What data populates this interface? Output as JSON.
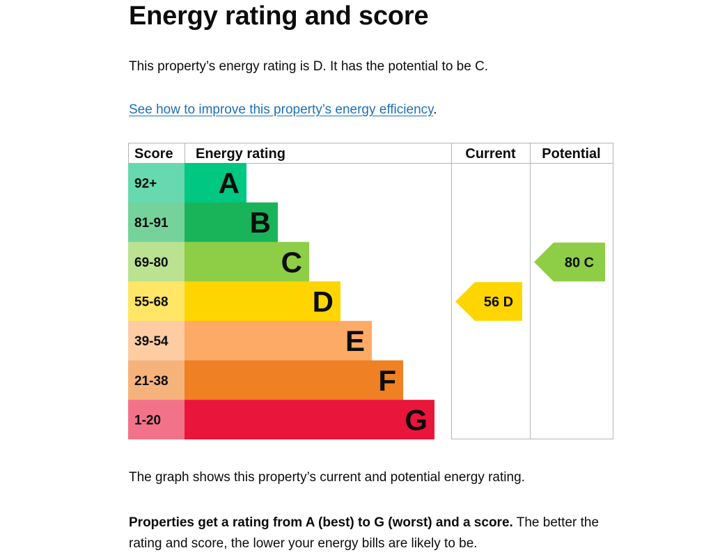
{
  "heading": "Energy rating and score",
  "intro": "This property’s energy rating is D. It has the potential to be C.",
  "improve_link": "See how to improve this property’s energy efficiency",
  "improve_link_suffix": ".",
  "graph_caption": "The graph shows this property’s current and potential energy rating.",
  "explanation_bold": "Properties get a rating from A (best) to G (worst) and a score.",
  "explanation_rest": " The better the rating and score, the lower your energy bills are likely to be.",
  "chart_data": {
    "type": "table",
    "headers": [
      "Score",
      "Energy rating",
      "Current",
      "Potential"
    ],
    "bands": [
      {
        "letter": "A",
        "score": "92+",
        "color": "#00c781",
        "score_color": "#66d9b1"
      },
      {
        "letter": "B",
        "score": "81-91",
        "color": "#19b459",
        "score_color": "#75d29b"
      },
      {
        "letter": "C",
        "score": "69-80",
        "color": "#8dce46",
        "score_color": "#bbe290"
      },
      {
        "letter": "D",
        "score": "55-68",
        "color": "#ffd500",
        "score_color": "#ffe666"
      },
      {
        "letter": "E",
        "score": "39-54",
        "color": "#fcaa65",
        "score_color": "#fdcca3"
      },
      {
        "letter": "F",
        "score": "21-38",
        "color": "#ef8023",
        "score_color": "#f5b37b"
      },
      {
        "letter": "G",
        "score": "1-20",
        "color": "#e9153b",
        "score_color": "#f27389"
      }
    ],
    "current": {
      "score": 56,
      "letter": "D",
      "label": "56 D"
    },
    "potential": {
      "score": 80,
      "letter": "C",
      "label": "80 C"
    }
  }
}
